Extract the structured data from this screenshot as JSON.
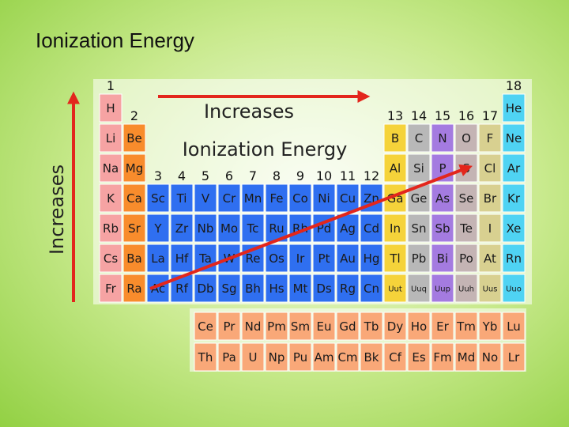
{
  "header": {
    "title": "Ionization Energy"
  },
  "annotations": {
    "horizontal_label": "Increases",
    "vertical_label": "Increases",
    "trend_label": "Ionization Energy"
  },
  "table": {
    "group_numbers": [
      "1",
      "2",
      "3",
      "4",
      "5",
      "6",
      "7",
      "8",
      "9",
      "10",
      "11",
      "12",
      "13",
      "14",
      "15",
      "16",
      "17",
      "18"
    ],
    "rows": [
      [
        {
          "s": "H",
          "c": "#f6a3a3"
        },
        null,
        null,
        null,
        null,
        null,
        null,
        null,
        null,
        null,
        null,
        null,
        null,
        null,
        null,
        null,
        null,
        {
          "s": "He",
          "c": "#4fd3f3"
        }
      ],
      [
        {
          "s": "Li",
          "c": "#f6a3a3"
        },
        {
          "s": "Be",
          "c": "#f88c2c"
        },
        null,
        null,
        null,
        null,
        null,
        null,
        null,
        null,
        null,
        null,
        {
          "s": "B",
          "c": "#f5d33a"
        },
        {
          "s": "C",
          "c": "#b8b8b8"
        },
        {
          "s": "N",
          "c": "#a47be0"
        },
        {
          "s": "O",
          "c": "#c4b4b4"
        },
        {
          "s": "F",
          "c": "#d8d090"
        },
        {
          "s": "Ne",
          "c": "#4fd3f3"
        }
      ],
      [
        {
          "s": "Na",
          "c": "#f6a3a3"
        },
        {
          "s": "Mg",
          "c": "#f88c2c"
        },
        null,
        null,
        null,
        null,
        null,
        null,
        null,
        null,
        null,
        null,
        {
          "s": "Al",
          "c": "#f5d33a"
        },
        {
          "s": "Si",
          "c": "#b8b8b8"
        },
        {
          "s": "P",
          "c": "#a47be0"
        },
        {
          "s": "S",
          "c": "#c4b4b4"
        },
        {
          "s": "Cl",
          "c": "#d8d090"
        },
        {
          "s": "Ar",
          "c": "#4fd3f3"
        }
      ],
      [
        {
          "s": "K",
          "c": "#f6a3a3"
        },
        {
          "s": "Ca",
          "c": "#f88c2c"
        },
        {
          "s": "Sc",
          "c": "#2f6ff0"
        },
        {
          "s": "Ti",
          "c": "#2f6ff0"
        },
        {
          "s": "V",
          "c": "#2f6ff0"
        },
        {
          "s": "Cr",
          "c": "#2f6ff0"
        },
        {
          "s": "Mn",
          "c": "#2f6ff0"
        },
        {
          "s": "Fe",
          "c": "#2f6ff0"
        },
        {
          "s": "Co",
          "c": "#2f6ff0"
        },
        {
          "s": "Ni",
          "c": "#2f6ff0"
        },
        {
          "s": "Cu",
          "c": "#2f6ff0"
        },
        {
          "s": "Zn",
          "c": "#2f6ff0"
        },
        {
          "s": "Ga",
          "c": "#f5d33a"
        },
        {
          "s": "Ge",
          "c": "#b8b8b8"
        },
        {
          "s": "As",
          "c": "#a47be0"
        },
        {
          "s": "Se",
          "c": "#c4b4b4"
        },
        {
          "s": "Br",
          "c": "#d8d090"
        },
        {
          "s": "Kr",
          "c": "#4fd3f3"
        }
      ],
      [
        {
          "s": "Rb",
          "c": "#f6a3a3"
        },
        {
          "s": "Sr",
          "c": "#f88c2c"
        },
        {
          "s": "Y",
          "c": "#2f6ff0"
        },
        {
          "s": "Zr",
          "c": "#2f6ff0"
        },
        {
          "s": "Nb",
          "c": "#2f6ff0"
        },
        {
          "s": "Mo",
          "c": "#2f6ff0"
        },
        {
          "s": "Tc",
          "c": "#2f6ff0"
        },
        {
          "s": "Ru",
          "c": "#2f6ff0"
        },
        {
          "s": "Rh",
          "c": "#2f6ff0"
        },
        {
          "s": "Pd",
          "c": "#2f6ff0"
        },
        {
          "s": "Ag",
          "c": "#2f6ff0"
        },
        {
          "s": "Cd",
          "c": "#2f6ff0"
        },
        {
          "s": "In",
          "c": "#f5d33a"
        },
        {
          "s": "Sn",
          "c": "#b8b8b8"
        },
        {
          "s": "Sb",
          "c": "#a47be0"
        },
        {
          "s": "Te",
          "c": "#c4b4b4"
        },
        {
          "s": "I",
          "c": "#d8d090"
        },
        {
          "s": "Xe",
          "c": "#4fd3f3"
        }
      ],
      [
        {
          "s": "Cs",
          "c": "#f6a3a3"
        },
        {
          "s": "Ba",
          "c": "#f88c2c"
        },
        {
          "s": "La",
          "c": "#2f6ff0"
        },
        {
          "s": "Hf",
          "c": "#2f6ff0"
        },
        {
          "s": "Ta",
          "c": "#2f6ff0"
        },
        {
          "s": "W",
          "c": "#2f6ff0"
        },
        {
          "s": "Re",
          "c": "#2f6ff0"
        },
        {
          "s": "Os",
          "c": "#2f6ff0"
        },
        {
          "s": "Ir",
          "c": "#2f6ff0"
        },
        {
          "s": "Pt",
          "c": "#2f6ff0"
        },
        {
          "s": "Au",
          "c": "#2f6ff0"
        },
        {
          "s": "Hg",
          "c": "#2f6ff0"
        },
        {
          "s": "Tl",
          "c": "#f5d33a"
        },
        {
          "s": "Pb",
          "c": "#b8b8b8"
        },
        {
          "s": "Bi",
          "c": "#a47be0"
        },
        {
          "s": "Po",
          "c": "#c4b4b4"
        },
        {
          "s": "At",
          "c": "#d8d090"
        },
        {
          "s": "Rn",
          "c": "#4fd3f3"
        }
      ],
      [
        {
          "s": "Fr",
          "c": "#f6a3a3"
        },
        {
          "s": "Ra",
          "c": "#f88c2c"
        },
        {
          "s": "Ac",
          "c": "#2f6ff0"
        },
        {
          "s": "Rf",
          "c": "#2f6ff0"
        },
        {
          "s": "Db",
          "c": "#2f6ff0"
        },
        {
          "s": "Sg",
          "c": "#2f6ff0"
        },
        {
          "s": "Bh",
          "c": "#2f6ff0"
        },
        {
          "s": "Hs",
          "c": "#2f6ff0"
        },
        {
          "s": "Mt",
          "c": "#2f6ff0"
        },
        {
          "s": "Ds",
          "c": "#2f6ff0"
        },
        {
          "s": "Rg",
          "c": "#2f6ff0"
        },
        {
          "s": "Cn",
          "c": "#2f6ff0"
        },
        {
          "s": "Uut",
          "c": "#f5d33a"
        },
        {
          "s": "Uuq",
          "c": "#b8b8b8"
        },
        {
          "s": "Uup",
          "c": "#a47be0"
        },
        {
          "s": "Uuh",
          "c": "#c4b4b4"
        },
        {
          "s": "Uus",
          "c": "#d8d090"
        },
        {
          "s": "Uuo",
          "c": "#4fd3f3"
        }
      ]
    ],
    "f_block": [
      [
        {
          "s": "Ce",
          "c": "#f9a878"
        },
        {
          "s": "Pr",
          "c": "#f9a878"
        },
        {
          "s": "Nd",
          "c": "#f9a878"
        },
        {
          "s": "Pm",
          "c": "#f9a878"
        },
        {
          "s": "Sm",
          "c": "#f9a878"
        },
        {
          "s": "Eu",
          "c": "#f9a878"
        },
        {
          "s": "Gd",
          "c": "#f9a878"
        },
        {
          "s": "Tb",
          "c": "#f9a878"
        },
        {
          "s": "Dy",
          "c": "#f9a878"
        },
        {
          "s": "Ho",
          "c": "#f9a878"
        },
        {
          "s": "Er",
          "c": "#f9a878"
        },
        {
          "s": "Tm",
          "c": "#f9a878"
        },
        {
          "s": "Yb",
          "c": "#f9a878"
        },
        {
          "s": "Lu",
          "c": "#f9a878"
        }
      ],
      [
        {
          "s": "Th",
          "c": "#f9a878"
        },
        {
          "s": "Pa",
          "c": "#f9a878"
        },
        {
          "s": "U",
          "c": "#f9a878"
        },
        {
          "s": "Np",
          "c": "#f9a878"
        },
        {
          "s": "Pu",
          "c": "#f9a878"
        },
        {
          "s": "Am",
          "c": "#f9a878"
        },
        {
          "s": "Cm",
          "c": "#f9a878"
        },
        {
          "s": "Bk",
          "c": "#f9a878"
        },
        {
          "s": "Cf",
          "c": "#f9a878"
        },
        {
          "s": "Es",
          "c": "#f9a878"
        },
        {
          "s": "Fm",
          "c": "#f9a878"
        },
        {
          "s": "Md",
          "c": "#f9a878"
        },
        {
          "s": "No",
          "c": "#f9a878"
        },
        {
          "s": "Lr",
          "c": "#f9a878"
        }
      ]
    ]
  }
}
